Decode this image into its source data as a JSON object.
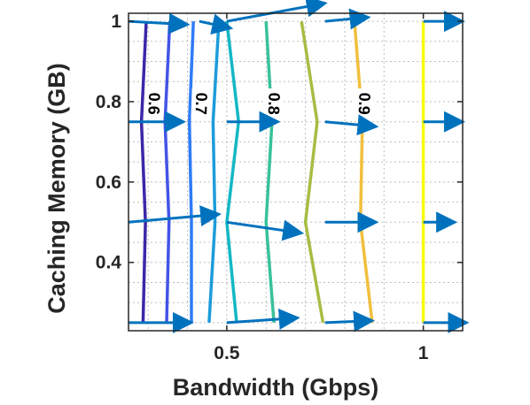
{
  "chart_data": {
    "type": "contour",
    "xlabel": "Bandwidth (Gbps)",
    "ylabel": "Caching Memory (GB)",
    "xlim": [
      0.25,
      1.1
    ],
    "ylim": [
      0.23,
      1.02
    ],
    "xticks": [
      0.5,
      1
    ],
    "xtick_labels": [
      "0.5",
      "1"
    ],
    "yticks": [
      0.4,
      0.6,
      0.8,
      1
    ],
    "ytick_labels": [
      "0.4",
      "0.6",
      "0.8",
      "1"
    ],
    "grid": "dotted",
    "colormap": "parula",
    "contour_levels": [
      {
        "level": 0.6,
        "label": "0.6",
        "color": "#3e26a8",
        "points": [
          [
            0.295,
            1.0
          ],
          [
            0.283,
            0.75
          ],
          [
            0.293,
            0.5
          ],
          [
            0.287,
            0.25
          ]
        ]
      },
      {
        "level": 0.65,
        "label": "",
        "color": "#4354e6",
        "points": [
          [
            0.355,
            1.0
          ],
          [
            0.343,
            0.75
          ],
          [
            0.353,
            0.5
          ],
          [
            0.347,
            0.25
          ]
        ]
      },
      {
        "level": 0.7,
        "label": "0.7",
        "color": "#2f7bf6",
        "points": [
          [
            0.415,
            1.0
          ],
          [
            0.405,
            0.75
          ],
          [
            0.41,
            0.5
          ],
          [
            0.41,
            0.25
          ]
        ]
      },
      {
        "level": 0.72,
        "label": "",
        "color": "#1d9cda",
        "points": [
          [
            0.48,
            1.0
          ],
          [
            0.465,
            0.75
          ],
          [
            0.47,
            0.5
          ],
          [
            0.455,
            0.25
          ]
        ]
      },
      {
        "level": 0.75,
        "label": "",
        "color": "#14b7c5",
        "points": [
          [
            0.5,
            1.0
          ],
          [
            0.53,
            0.75
          ],
          [
            0.5,
            0.5
          ],
          [
            0.525,
            0.25
          ]
        ]
      },
      {
        "level": 0.8,
        "label": "0.8",
        "color": "#38c29a",
        "points": [
          [
            0.6,
            1.0
          ],
          [
            0.615,
            0.75
          ],
          [
            0.6,
            0.5
          ],
          [
            0.62,
            0.25
          ]
        ]
      },
      {
        "level": 0.85,
        "label": "",
        "color": "#a6bd45",
        "points": [
          [
            0.69,
            1.0
          ],
          [
            0.73,
            0.75
          ],
          [
            0.7,
            0.5
          ],
          [
            0.745,
            0.25
          ]
        ]
      },
      {
        "level": 0.9,
        "label": "0.9",
        "color": "#f2bf3d",
        "points": [
          [
            0.825,
            1.0
          ],
          [
            0.845,
            0.75
          ],
          [
            0.84,
            0.5
          ],
          [
            0.87,
            0.25
          ]
        ]
      },
      {
        "level": 0.95,
        "label": "",
        "color": "#f9fb0e",
        "points": [
          [
            1.0,
            1.0
          ],
          [
            1.0,
            0.5
          ],
          [
            1.0,
            0.25
          ]
        ]
      }
    ],
    "contour_labels": [
      {
        "text": "0.6",
        "x": 0.315,
        "y": 0.795
      },
      {
        "text": "0.7",
        "x": 0.435,
        "y": 0.795
      },
      {
        "text": "0.8",
        "x": 0.62,
        "y": 0.795
      },
      {
        "text": "0.9",
        "x": 0.85,
        "y": 0.795
      }
    ],
    "arrow_color": "#0072bd",
    "arrows": [
      {
        "x": 0.25,
        "y": 1.0,
        "dx": 0.15,
        "dy": -0.008
      },
      {
        "x": 0.43,
        "y": 1.0,
        "dx": 0.08,
        "dy": -0.017
      },
      {
        "x": 0.5,
        "y": 1.0,
        "dx": 0.25,
        "dy": 0.045
      },
      {
        "x": 0.75,
        "y": 1.0,
        "dx": 0.11,
        "dy": 0.01
      },
      {
        "x": 1.0,
        "y": 1.0,
        "dx": 0.1,
        "dy": 0.0
      },
      {
        "x": 0.25,
        "y": 0.75,
        "dx": 0.14,
        "dy": 0.0
      },
      {
        "x": 0.5,
        "y": 0.75,
        "dx": 0.13,
        "dy": 0.0
      },
      {
        "x": 0.75,
        "y": 0.75,
        "dx": 0.13,
        "dy": -0.012
      },
      {
        "x": 1.0,
        "y": 0.75,
        "dx": 0.1,
        "dy": 0.0
      },
      {
        "x": 0.25,
        "y": 0.5,
        "dx": 0.23,
        "dy": 0.02
      },
      {
        "x": 0.5,
        "y": 0.5,
        "dx": 0.19,
        "dy": -0.027
      },
      {
        "x": 0.75,
        "y": 0.5,
        "dx": 0.13,
        "dy": 0.0
      },
      {
        "x": 1.0,
        "y": 0.5,
        "dx": 0.08,
        "dy": 0.0
      },
      {
        "x": 0.25,
        "y": 0.25,
        "dx": 0.16,
        "dy": 0.0
      },
      {
        "x": 0.5,
        "y": 0.25,
        "dx": 0.18,
        "dy": 0.012
      },
      {
        "x": 0.75,
        "y": 0.25,
        "dx": 0.12,
        "dy": 0.005
      },
      {
        "x": 1.0,
        "y": 0.25,
        "dx": 0.11,
        "dy": 0.0
      }
    ]
  }
}
